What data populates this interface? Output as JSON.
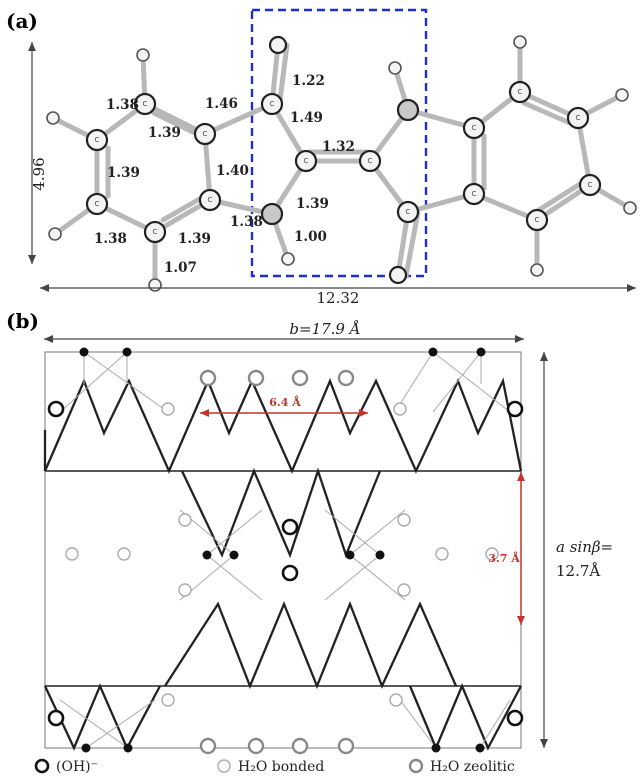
{
  "panel_a": {
    "label": "(a)",
    "bond_lengths": [
      "1.38",
      "1.46",
      "1.22",
      "1.39",
      "1.49",
      "1.32",
      "1.39",
      "1.40",
      "1.39",
      "1.38",
      "1.38",
      "1.39",
      "1.00",
      "1.07"
    ],
    "atom_label": "C",
    "height_label": "4.96",
    "width_label": "12.32"
  },
  "panel_b": {
    "label": "(b)",
    "b_label": "b=17.9 Å",
    "inner_distance_label": "6.4 Å",
    "layer_gap_label": "3.7 Å",
    "a_line1": "a sinβ=",
    "a_line2": "12.7Å"
  },
  "legend": {
    "items": [
      {
        "label": "(OH)⁻",
        "kind": "oh"
      },
      {
        "label": "H₂O bonded",
        "kind": "bonded"
      },
      {
        "label": "H₂O zeolitic",
        "kind": "zeolitic"
      }
    ]
  },
  "colors": {
    "highlight_box": "#1f2fcf",
    "measurement_red": "#c8322a"
  }
}
